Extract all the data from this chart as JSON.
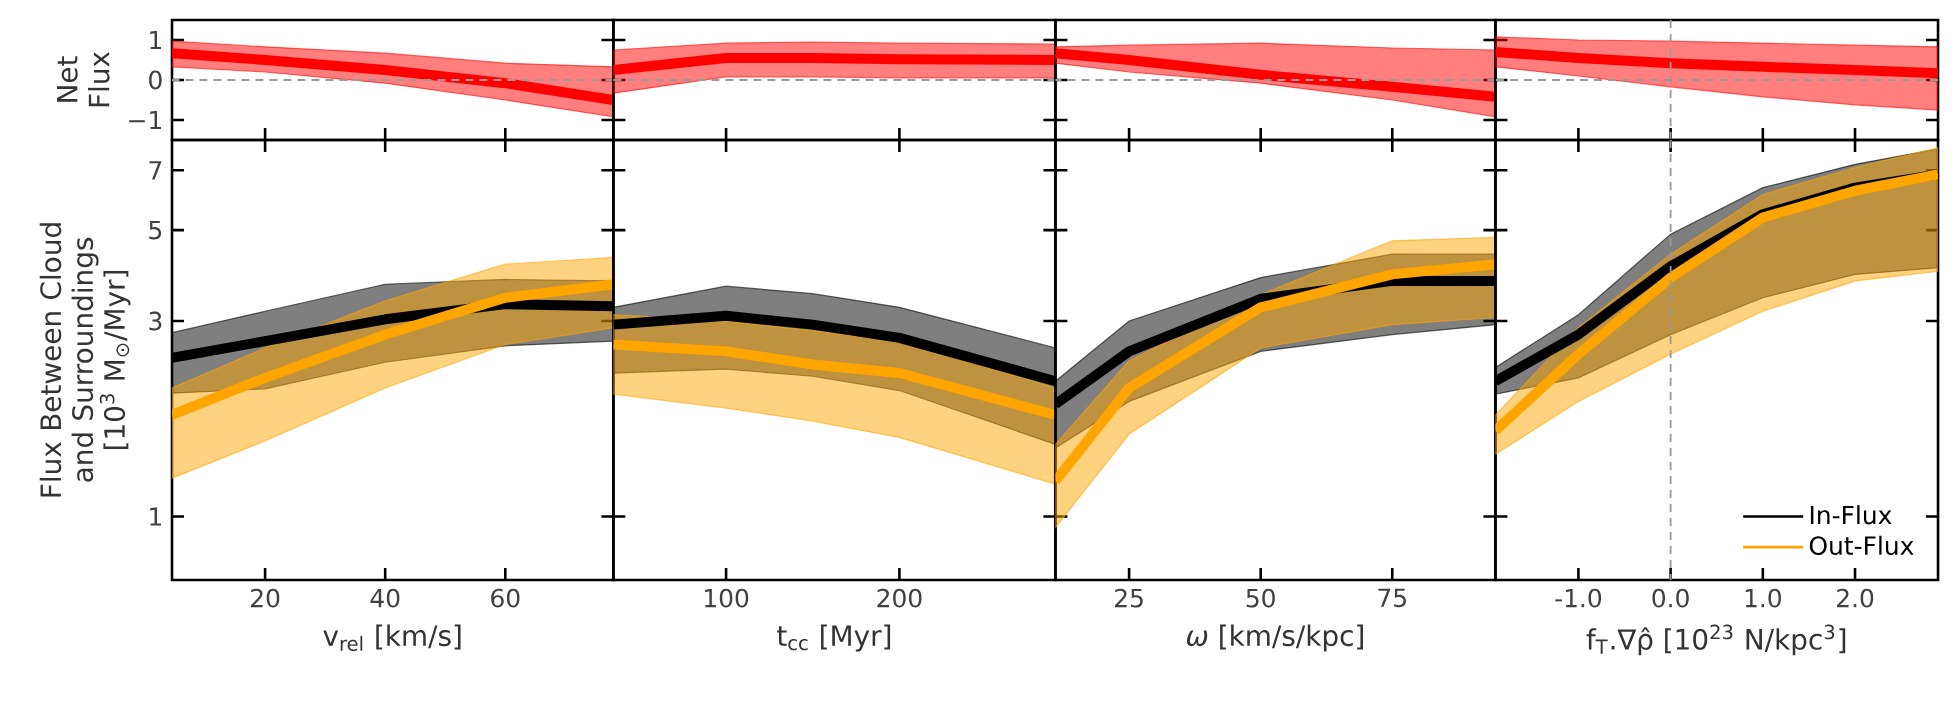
{
  "chart_data": [
    {
      "type": "line",
      "ylabel": "Net Flux",
      "x": [
        4.5,
        20,
        40,
        60,
        78
      ],
      "xlim": [
        4.5,
        78
      ],
      "xticks": [
        20,
        40,
        60
      ],
      "ylim": [
        -1.5,
        1.5
      ],
      "yticks": [
        {
          "value": -1,
          "label": "−1"
        },
        0,
        1
      ],
      "tick_labels": "y",
      "series": [
        {
          "color": "#ff0000",
          "values": [
            0.67,
            0.5,
            0.25,
            -0.08,
            -0.5
          ],
          "lower": [
            0.33,
            0.2,
            -0.08,
            -0.5,
            -0.92
          ],
          "upper": [
            0.97,
            0.83,
            0.67,
            0.42,
            0.33
          ]
        }
      ],
      "ref_lines": [
        {
          "axis": "y",
          "value": 0,
          "color": "#999999",
          "line_style": "dashed"
        }
      ]
    },
    {
      "type": "line",
      "x": [
        35,
        100,
        150,
        200,
        290
      ],
      "xlim": [
        35,
        290
      ],
      "xticks": [
        100,
        200
      ],
      "ylim": [
        -1.5,
        1.5
      ],
      "yticks": [
        -1,
        0,
        1
      ],
      "tick_labels": false,
      "series": [
        {
          "color": "#ff0000",
          "values": [
            0.25,
            0.55,
            0.55,
            0.52,
            0.5
          ],
          "lower": [
            -0.33,
            0.08,
            0.08,
            0.05,
            0.05
          ],
          "upper": [
            0.75,
            0.92,
            0.95,
            0.92,
            0.9
          ]
        }
      ],
      "ref_lines": [
        {
          "axis": "y",
          "value": 0,
          "color": "#999999",
          "line_style": "dashed"
        }
      ]
    },
    {
      "type": "line",
      "x": [
        11,
        25,
        50,
        75,
        94.6
      ],
      "xlim": [
        11,
        94.6
      ],
      "xticks": [
        25,
        50,
        75
      ],
      "ylim": [
        -1.5,
        1.5
      ],
      "yticks": [
        -1,
        0,
        1
      ],
      "tick_labels": false,
      "series": [
        {
          "color": "#ff0000",
          "values": [
            0.67,
            0.5,
            0.13,
            -0.17,
            -0.42
          ],
          "lower": [
            0.42,
            0.2,
            -0.08,
            -0.5,
            -0.92
          ],
          "upper": [
            0.83,
            0.87,
            0.92,
            0.8,
            0.75
          ]
        }
      ],
      "ref_lines": [
        {
          "axis": "y",
          "value": 0,
          "color": "#999999",
          "line_style": "dashed"
        }
      ]
    },
    {
      "type": "line",
      "x": [
        -1.9,
        -1,
        0,
        1,
        2,
        2.9
      ],
      "xlim": [
        -1.9,
        2.9
      ],
      "xticks": [
        -1,
        0,
        1,
        2
      ],
      "ylim": [
        -1.5,
        1.5
      ],
      "yticks": [
        -1,
        0,
        1
      ],
      "tick_labels": false,
      "series": [
        {
          "color": "#ff0000",
          "values": [
            0.7,
            0.55,
            0.42,
            0.33,
            0.25,
            0.17
          ],
          "lower": [
            0.33,
            0.1,
            -0.17,
            -0.42,
            -0.62,
            -0.75
          ],
          "upper": [
            1.08,
            1.0,
            0.97,
            0.92,
            0.87,
            0.83
          ]
        }
      ],
      "ref_lines": [
        {
          "axis": "y",
          "value": 0,
          "color": "#999999",
          "line_style": "dashed"
        },
        {
          "axis": "x",
          "value": 0,
          "color": "#999999",
          "line_style": "dashed"
        }
      ]
    },
    {
      "type": "line",
      "xlabel": "v$_{rel}$ [km/s]",
      "ylabel": "Flux Between Cloud and Surroundings [10$^{3}$ M$_{⊙}$/Myr]",
      "log": "y",
      "x": [
        4.5,
        20,
        40,
        60,
        78
      ],
      "xlim": [
        4.5,
        78
      ],
      "xticks": [
        20,
        40,
        60
      ],
      "ylim": [
        0.7,
        8.3
      ],
      "yticks": [
        1,
        3,
        5,
        7
      ],
      "series": [
        {
          "color": "#000000",
          "values": [
            2.44,
            2.68,
            3.03,
            3.3,
            3.26
          ],
          "lower": [
            2.0,
            2.05,
            2.38,
            2.61,
            2.68
          ],
          "upper": [
            2.81,
            3.17,
            3.69,
            3.79,
            3.76
          ]
        },
        {
          "color": "#ffa500",
          "values": [
            1.77,
            2.18,
            2.78,
            3.42,
            3.69
          ],
          "lower": [
            1.24,
            1.53,
            2.06,
            2.63,
            2.89
          ],
          "upper": [
            2.06,
            2.58,
            3.36,
            4.13,
            4.29
          ]
        }
      ]
    },
    {
      "type": "line",
      "xlabel": "t$_{cc}$ [Myr]",
      "log": "y",
      "x": [
        35,
        100,
        150,
        200,
        290
      ],
      "xlim": [
        35,
        290
      ],
      "xticks": [
        100,
        200
      ],
      "ylim": [
        0.7,
        8.3
      ],
      "yticks": [
        1,
        3,
        5,
        7
      ],
      "tick_labels": "x",
      "series": [
        {
          "color": "#000000",
          "values": [
            2.94,
            3.09,
            2.94,
            2.73,
            2.14
          ],
          "lower": [
            2.24,
            2.29,
            2.2,
            2.03,
            1.5
          ],
          "upper": [
            3.24,
            3.65,
            3.5,
            3.24,
            2.58
          ]
        },
        {
          "color": "#ffa500",
          "values": [
            2.63,
            2.53,
            2.35,
            2.24,
            1.77
          ],
          "lower": [
            1.99,
            1.84,
            1.71,
            1.56,
            1.2
          ],
          "upper": [
            3.11,
            3.0,
            2.84,
            2.68,
            2.06
          ]
        }
      ]
    },
    {
      "type": "line",
      "xlabel": "*ω* [km/s/kpc]",
      "log": "y",
      "x": [
        11,
        25,
        50,
        75,
        94.6
      ],
      "xlim": [
        11,
        94.6
      ],
      "xticks": [
        25,
        50,
        75
      ],
      "ylim": [
        0.7,
        8.3
      ],
      "yticks": [
        1,
        3,
        5,
        7
      ],
      "tick_labels": "x",
      "series": [
        {
          "color": "#000000",
          "values": [
            1.88,
            2.53,
            3.4,
            3.76,
            3.76
          ],
          "lower": [
            1.47,
            1.91,
            2.53,
            2.78,
            2.94
          ],
          "upper": [
            2.14,
            3.0,
            3.83,
            4.37,
            4.37
          ]
        },
        {
          "color": "#ffa500",
          "values": [
            1.22,
            2.06,
            3.24,
            3.9,
            4.13
          ],
          "lower": [
            0.94,
            1.59,
            2.58,
            2.94,
            3.06
          ],
          "upper": [
            1.5,
            2.4,
            3.48,
            4.71,
            4.8
          ]
        }
      ]
    },
    {
      "type": "line",
      "xlabel": "f$_{T}$.∇ρ̂ [10$^{23}$ N/kpc$^{3}$]",
      "log": "y",
      "x": [
        -1.9,
        -1,
        0,
        1,
        2,
        2.9
      ],
      "xlim": [
        -1.9,
        2.9
      ],
      "xticks": [
        {
          "value": -1,
          "label": "-1.0"
        },
        {
          "value": 0,
          "label": "0.0"
        },
        {
          "value": 1,
          "label": "1.0"
        },
        {
          "value": 2,
          "label": "2.0"
        }
      ],
      "ylim": [
        0.7,
        8.3
      ],
      "yticks": [
        1,
        3,
        5,
        7
      ],
      "tick_labels": "x",
      "legend": "bottom right",
      "series": [
        {
          "name": "In-Flux",
          "color": "#000000",
          "values": [
            2.14,
            2.78,
            4.08,
            5.47,
            6.35,
            6.84
          ],
          "lower": [
            1.99,
            2.18,
            2.78,
            3.42,
            3.9,
            4.05
          ],
          "upper": [
            2.31,
            3.11,
            4.89,
            6.35,
            7.24,
            7.89
          ]
        },
        {
          "name": "Out-Flux",
          "color": "#ffa500",
          "values": [
            1.62,
            2.49,
            3.83,
            5.37,
            6.24,
            6.84
          ],
          "lower": [
            1.42,
            1.91,
            2.49,
            3.17,
            3.76,
            3.97
          ],
          "upper": [
            1.77,
            2.89,
            4.37,
            6.11,
            7.11,
            7.95
          ]
        }
      ],
      "ref_lines": [
        {
          "axis": "x",
          "value": 0,
          "color": "#999999",
          "line_style": "dashed"
        }
      ]
    }
  ]
}
